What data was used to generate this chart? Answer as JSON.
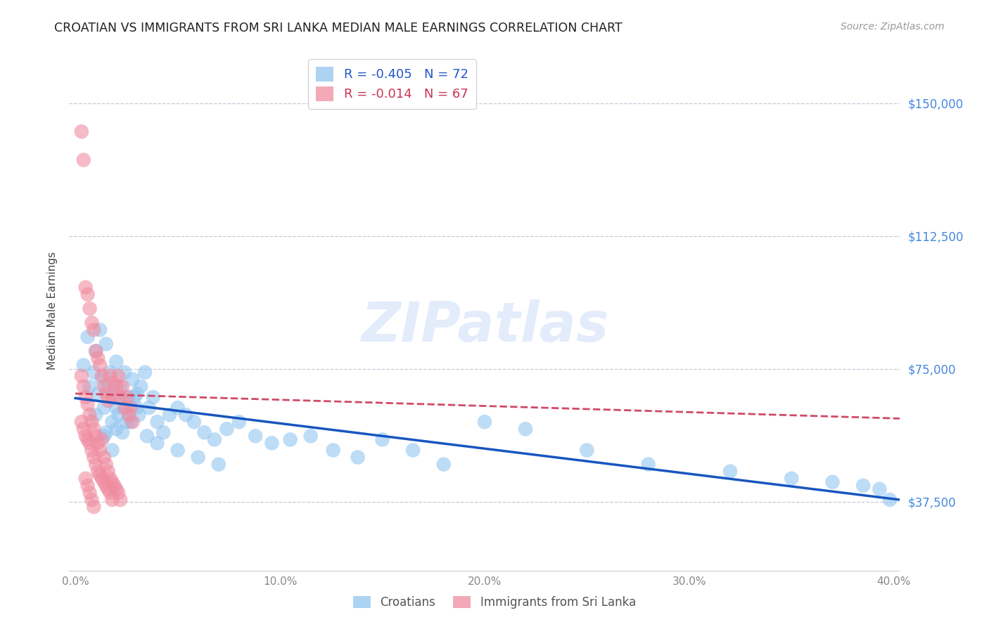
{
  "title": "CROATIAN VS IMMIGRANTS FROM SRI LANKA MEDIAN MALE EARNINGS CORRELATION CHART",
  "source": "Source: ZipAtlas.com",
  "ylabel": "Median Male Earnings",
  "ytick_labels": [
    "$150,000",
    "$112,500",
    "$75,000",
    "$37,500"
  ],
  "ytick_values": [
    150000,
    112500,
    75000,
    37500
  ],
  "ymin": 18000,
  "ymax": 165000,
  "xmin": -0.003,
  "xmax": 0.403,
  "xtick_values": [
    0.0,
    0.1,
    0.2,
    0.3,
    0.4
  ],
  "xtick_labels": [
    "0.0%",
    "10.0%",
    "20.0%",
    "30.0%",
    "40.0%"
  ],
  "croatian_color": "#92c5f0",
  "srilanka_color": "#f08ca0",
  "trendline_croatian_color": "#1855c0",
  "trendline_srilanka_color": "#d04868",
  "watermark": "ZIPatlas",
  "background_color": "#ffffff",
  "grid_color": "#c8c8dc",
  "croatian_x": [
    0.004,
    0.006,
    0.007,
    0.009,
    0.01,
    0.011,
    0.012,
    0.013,
    0.014,
    0.015,
    0.016,
    0.017,
    0.018,
    0.019,
    0.02,
    0.02,
    0.021,
    0.022,
    0.023,
    0.024,
    0.025,
    0.026,
    0.027,
    0.028,
    0.029,
    0.03,
    0.031,
    0.032,
    0.034,
    0.036,
    0.038,
    0.04,
    0.043,
    0.046,
    0.05,
    0.054,
    0.058,
    0.063,
    0.068,
    0.074,
    0.08,
    0.088,
    0.096,
    0.105,
    0.115,
    0.126,
    0.138,
    0.15,
    0.165,
    0.18,
    0.01,
    0.015,
    0.02,
    0.025,
    0.03,
    0.035,
    0.04,
    0.05,
    0.06,
    0.07,
    0.2,
    0.22,
    0.25,
    0.28,
    0.32,
    0.35,
    0.37,
    0.385,
    0.393,
    0.398,
    0.014,
    0.018
  ],
  "croatian_y": [
    76000,
    84000,
    70000,
    74000,
    80000,
    68000,
    86000,
    72000,
    64000,
    82000,
    70000,
    74000,
    60000,
    67000,
    64000,
    77000,
    62000,
    70000,
    57000,
    74000,
    64000,
    67000,
    60000,
    72000,
    67000,
    68000,
    62000,
    70000,
    74000,
    64000,
    67000,
    60000,
    57000,
    62000,
    64000,
    62000,
    60000,
    57000,
    55000,
    58000,
    60000,
    56000,
    54000,
    55000,
    56000,
    52000,
    50000,
    55000,
    52000,
    48000,
    62000,
    57000,
    58000,
    60000,
    64000,
    56000,
    54000,
    52000,
    50000,
    48000,
    60000,
    58000,
    52000,
    48000,
    46000,
    44000,
    43000,
    42000,
    41000,
    38000,
    56000,
    52000
  ],
  "srilanka_x": [
    0.003,
    0.004,
    0.005,
    0.006,
    0.007,
    0.008,
    0.009,
    0.01,
    0.011,
    0.012,
    0.013,
    0.014,
    0.015,
    0.016,
    0.017,
    0.018,
    0.019,
    0.02,
    0.021,
    0.022,
    0.023,
    0.024,
    0.025,
    0.026,
    0.027,
    0.028,
    0.003,
    0.004,
    0.005,
    0.006,
    0.007,
    0.008,
    0.009,
    0.01,
    0.011,
    0.012,
    0.013,
    0.014,
    0.015,
    0.016,
    0.017,
    0.018,
    0.019,
    0.02,
    0.021,
    0.022,
    0.003,
    0.004,
    0.005,
    0.006,
    0.007,
    0.008,
    0.009,
    0.01,
    0.011,
    0.012,
    0.013,
    0.014,
    0.015,
    0.016,
    0.017,
    0.018,
    0.005,
    0.006,
    0.007,
    0.008,
    0.009
  ],
  "srilanka_y": [
    142000,
    134000,
    98000,
    96000,
    92000,
    88000,
    86000,
    80000,
    78000,
    76000,
    73000,
    70000,
    68000,
    66000,
    73000,
    67000,
    71000,
    70000,
    73000,
    67000,
    70000,
    64000,
    67000,
    62000,
    64000,
    60000,
    73000,
    70000,
    67000,
    65000,
    62000,
    60000,
    58000,
    56000,
    54000,
    52000,
    55000,
    50000,
    48000,
    46000,
    44000,
    43000,
    42000,
    41000,
    40000,
    38000,
    60000,
    58000,
    56000,
    55000,
    54000,
    52000,
    50000,
    48000,
    46000,
    45000,
    44000,
    43000,
    42000,
    41000,
    40000,
    38000,
    44000,
    42000,
    40000,
    38000,
    36000
  ],
  "legend_r1": "R = -0.405",
  "legend_n1": "N = 72",
  "legend_r2": "R = -0.014",
  "legend_n2": "N = 67",
  "legend_color1_r": "#3366cc",
  "legend_color1_n": "#3366cc",
  "legend_color2_r": "#cc3355",
  "legend_color2_n": "#cc3355"
}
